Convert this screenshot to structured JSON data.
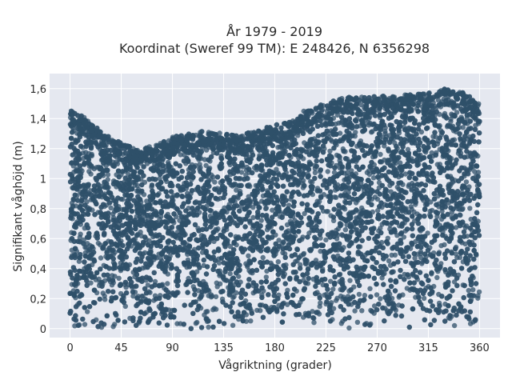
{
  "chart_data": {
    "type": "scatter",
    "title_line1": "År 1979 - 2019",
    "title_line2": "Koordinat (Sweref 99 TM): E 248426, N 6356298",
    "xlabel": "Vågriktning (grader)",
    "ylabel": "Signifikant våghöjd (m)",
    "xlim": [
      -18,
      378
    ],
    "ylim": [
      -0.06,
      1.7
    ],
    "xticks": [
      0,
      45,
      90,
      135,
      180,
      225,
      270,
      315,
      360
    ],
    "xtick_labels": [
      "0",
      "45",
      "90",
      "135",
      "180",
      "225",
      "270",
      "315",
      "360"
    ],
    "yticks": [
      0,
      0.2,
      0.4,
      0.6,
      0.8,
      1.0,
      1.2,
      1.4,
      1.6
    ],
    "ytick_labels": [
      "0",
      "0,2",
      "0,4",
      "0,6",
      "0,8",
      "1",
      "1,2",
      "1,4",
      "1,6"
    ],
    "grid": true,
    "marker_color": "#2f5069",
    "plot_background": "#e5e8f0",
    "envelope_note": "dense point cloud; approximate upper envelope (x deg, y m) below",
    "upper_envelope": [
      [
        0,
        1.46
      ],
      [
        10,
        1.42
      ],
      [
        20,
        1.37
      ],
      [
        30,
        1.3
      ],
      [
        45,
        1.24
      ],
      [
        60,
        1.2
      ],
      [
        75,
        1.22
      ],
      [
        90,
        1.28
      ],
      [
        105,
        1.3
      ],
      [
        120,
        1.32
      ],
      [
        135,
        1.3
      ],
      [
        150,
        1.3
      ],
      [
        165,
        1.32
      ],
      [
        180,
        1.36
      ],
      [
        195,
        1.38
      ],
      [
        205,
        1.46
      ],
      [
        225,
        1.5
      ],
      [
        240,
        1.54
      ],
      [
        270,
        1.55
      ],
      [
        300,
        1.56
      ],
      [
        315,
        1.57
      ],
      [
        330,
        1.6
      ],
      [
        345,
        1.58
      ],
      [
        360,
        1.5
      ]
    ],
    "x_range_data": [
      0,
      360
    ],
    "y_min_data": 0
  }
}
